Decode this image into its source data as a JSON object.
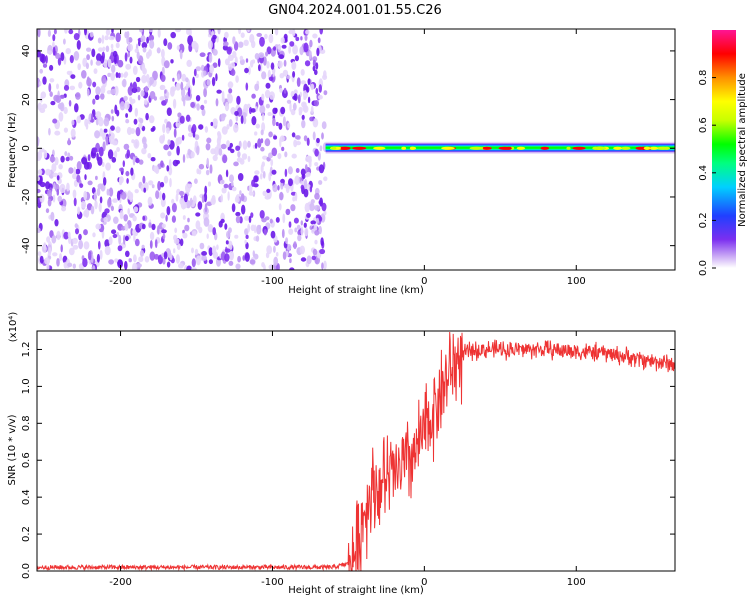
{
  "title": "GN04.2024.001.01.55.C26",
  "chart_data": [
    {
      "type": "heatmap",
      "xlabel": "Height of straight line (km)",
      "ylabel": "Frequency (Hz)",
      "xlim": [
        -255,
        165
      ],
      "ylim": [
        -50,
        49
      ],
      "xticks": [
        -200,
        -100,
        0,
        100
      ],
      "yticks": [
        -40,
        -20,
        0,
        20,
        40
      ],
      "noise_region_x": [
        -255,
        -65
      ],
      "signal_band_x": [
        -65,
        165
      ],
      "signal_center_freq": 0,
      "colorbar": {
        "label": "Normalized spectral amplitude",
        "range": [
          0,
          1
        ],
        "ticks": [
          0.0,
          0.2,
          0.4,
          0.6,
          0.8
        ],
        "colors": [
          "#ffffff",
          "#c9a8f5",
          "#7b2ff0",
          "#2040ff",
          "#00d0ff",
          "#00ff80",
          "#00ff00",
          "#c8ff00",
          "#ffff00",
          "#ff9000",
          "#ff0000",
          "#ff1493"
        ]
      }
    },
    {
      "type": "line",
      "xlabel": "Height of straight line (km)",
      "ylabel": "SNR (10 * v/v)",
      "exponent_label": "(x10⁴)",
      "xlim": [
        -255,
        165
      ],
      "ylim": [
        0,
        1.3
      ],
      "xticks": [
        -200,
        -100,
        0,
        100
      ],
      "yticks": [
        0.0,
        0.2,
        0.4,
        0.6,
        0.8,
        1.0,
        1.2
      ],
      "color": "#ee3333",
      "series": [
        {
          "x": [
            -255,
            -200,
            -150,
            -100,
            -60,
            -50,
            -45,
            -40,
            -35,
            -30,
            -25,
            -20,
            -15,
            -10,
            -5,
            0,
            5,
            10,
            15,
            20,
            25,
            30,
            40,
            60,
            80,
            100,
            120,
            140,
            165
          ],
          "y": [
            0.02,
            0.02,
            0.02,
            0.02,
            0.02,
            0.04,
            0.1,
            0.3,
            0.45,
            0.45,
            0.5,
            0.52,
            0.55,
            0.6,
            0.65,
            0.75,
            0.85,
            0.95,
            1.05,
            1.12,
            1.17,
            1.19,
            1.2,
            1.2,
            1.2,
            1.19,
            1.18,
            1.15,
            1.12
          ]
        }
      ]
    }
  ]
}
